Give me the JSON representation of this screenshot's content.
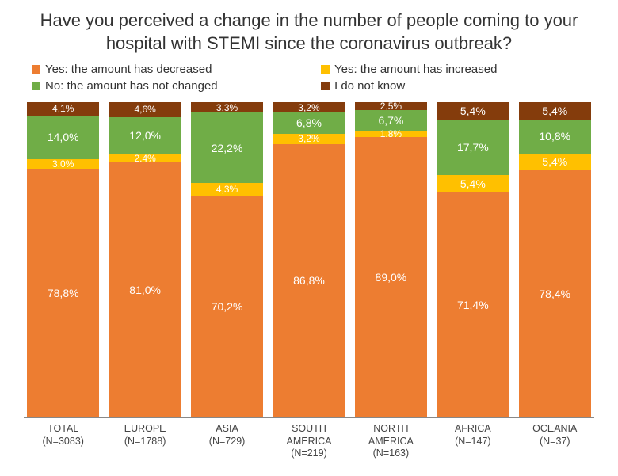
{
  "title": "Have you perceived a change in the number of people coming to your hospital with STEMI since the coronavirus outbreak?",
  "legend": [
    {
      "label": "Yes: the amount has decreased",
      "color": "#ed7d31"
    },
    {
      "label": "Yes: the amount has increased",
      "color": "#ffc000"
    },
    {
      "label": "No: the amount has not changed",
      "color": "#70ad47"
    },
    {
      "label": "I do not know",
      "color": "#843c0c"
    }
  ],
  "chart": {
    "type": "stacked-bar-100",
    "background_color": "#ffffff",
    "series_order": [
      "dontknow",
      "nochange",
      "increased",
      "decreased"
    ],
    "series_colors": {
      "decreased": "#ed7d31",
      "increased": "#ffc000",
      "nochange": "#70ad47",
      "dontknow": "#843c0c"
    },
    "label_text_color": "#ffffff",
    "categories": [
      {
        "name": "TOTAL",
        "n": "(N=3083)",
        "values": {
          "decreased": 78.8,
          "increased": 3.0,
          "nochange": 14.0,
          "dontknow": 4.1
        },
        "labels": {
          "decreased": "78,8%",
          "increased": "3,0%",
          "nochange": "14,0%",
          "dontknow": "4,1%"
        }
      },
      {
        "name": "EUROPE",
        "n": "(N=1788)",
        "values": {
          "decreased": 81.0,
          "increased": 2.4,
          "nochange": 12.0,
          "dontknow": 4.6
        },
        "labels": {
          "decreased": "81,0%",
          "increased": "2,4%",
          "nochange": "12,0%",
          "dontknow": "4,6%"
        }
      },
      {
        "name": "ASIA",
        "n": "(N=729)",
        "values": {
          "decreased": 70.2,
          "increased": 4.3,
          "nochange": 22.2,
          "dontknow": 3.3
        },
        "labels": {
          "decreased": "70,2%",
          "increased": "4,3%",
          "nochange": "22,2%",
          "dontknow": "3,3%"
        }
      },
      {
        "name": "SOUTH AMERICA",
        "n": "(N=219)",
        "values": {
          "decreased": 86.8,
          "increased": 3.2,
          "nochange": 6.8,
          "dontknow": 3.2
        },
        "labels": {
          "decreased": "86,8%",
          "increased": "3,2%",
          "nochange": "6,8%",
          "dontknow": "3,2%"
        }
      },
      {
        "name": "NORTH AMERICA",
        "n": "(N=163)",
        "values": {
          "decreased": 89.0,
          "increased": 1.8,
          "nochange": 6.7,
          "dontknow": 2.5
        },
        "labels": {
          "decreased": "89,0%",
          "increased": "1,8%",
          "nochange": "6,7%",
          "dontknow": "2,5%"
        }
      },
      {
        "name": "AFRICA",
        "n": "(N=147)",
        "values": {
          "decreased": 71.4,
          "increased": 5.4,
          "nochange": 17.7,
          "dontknow": 5.4
        },
        "labels": {
          "decreased": "71,4%",
          "increased": "5,4%",
          "nochange": "17,7%",
          "dontknow": "5,4%"
        }
      },
      {
        "name": "OCEANIA",
        "n": "(N=37)",
        "values": {
          "decreased": 78.4,
          "increased": 5.4,
          "nochange": 10.8,
          "dontknow": 5.4
        },
        "labels": {
          "decreased": "78,4%",
          "increased": "5,4%",
          "nochange": "10,8%",
          "dontknow": "5,4%"
        }
      }
    ]
  }
}
